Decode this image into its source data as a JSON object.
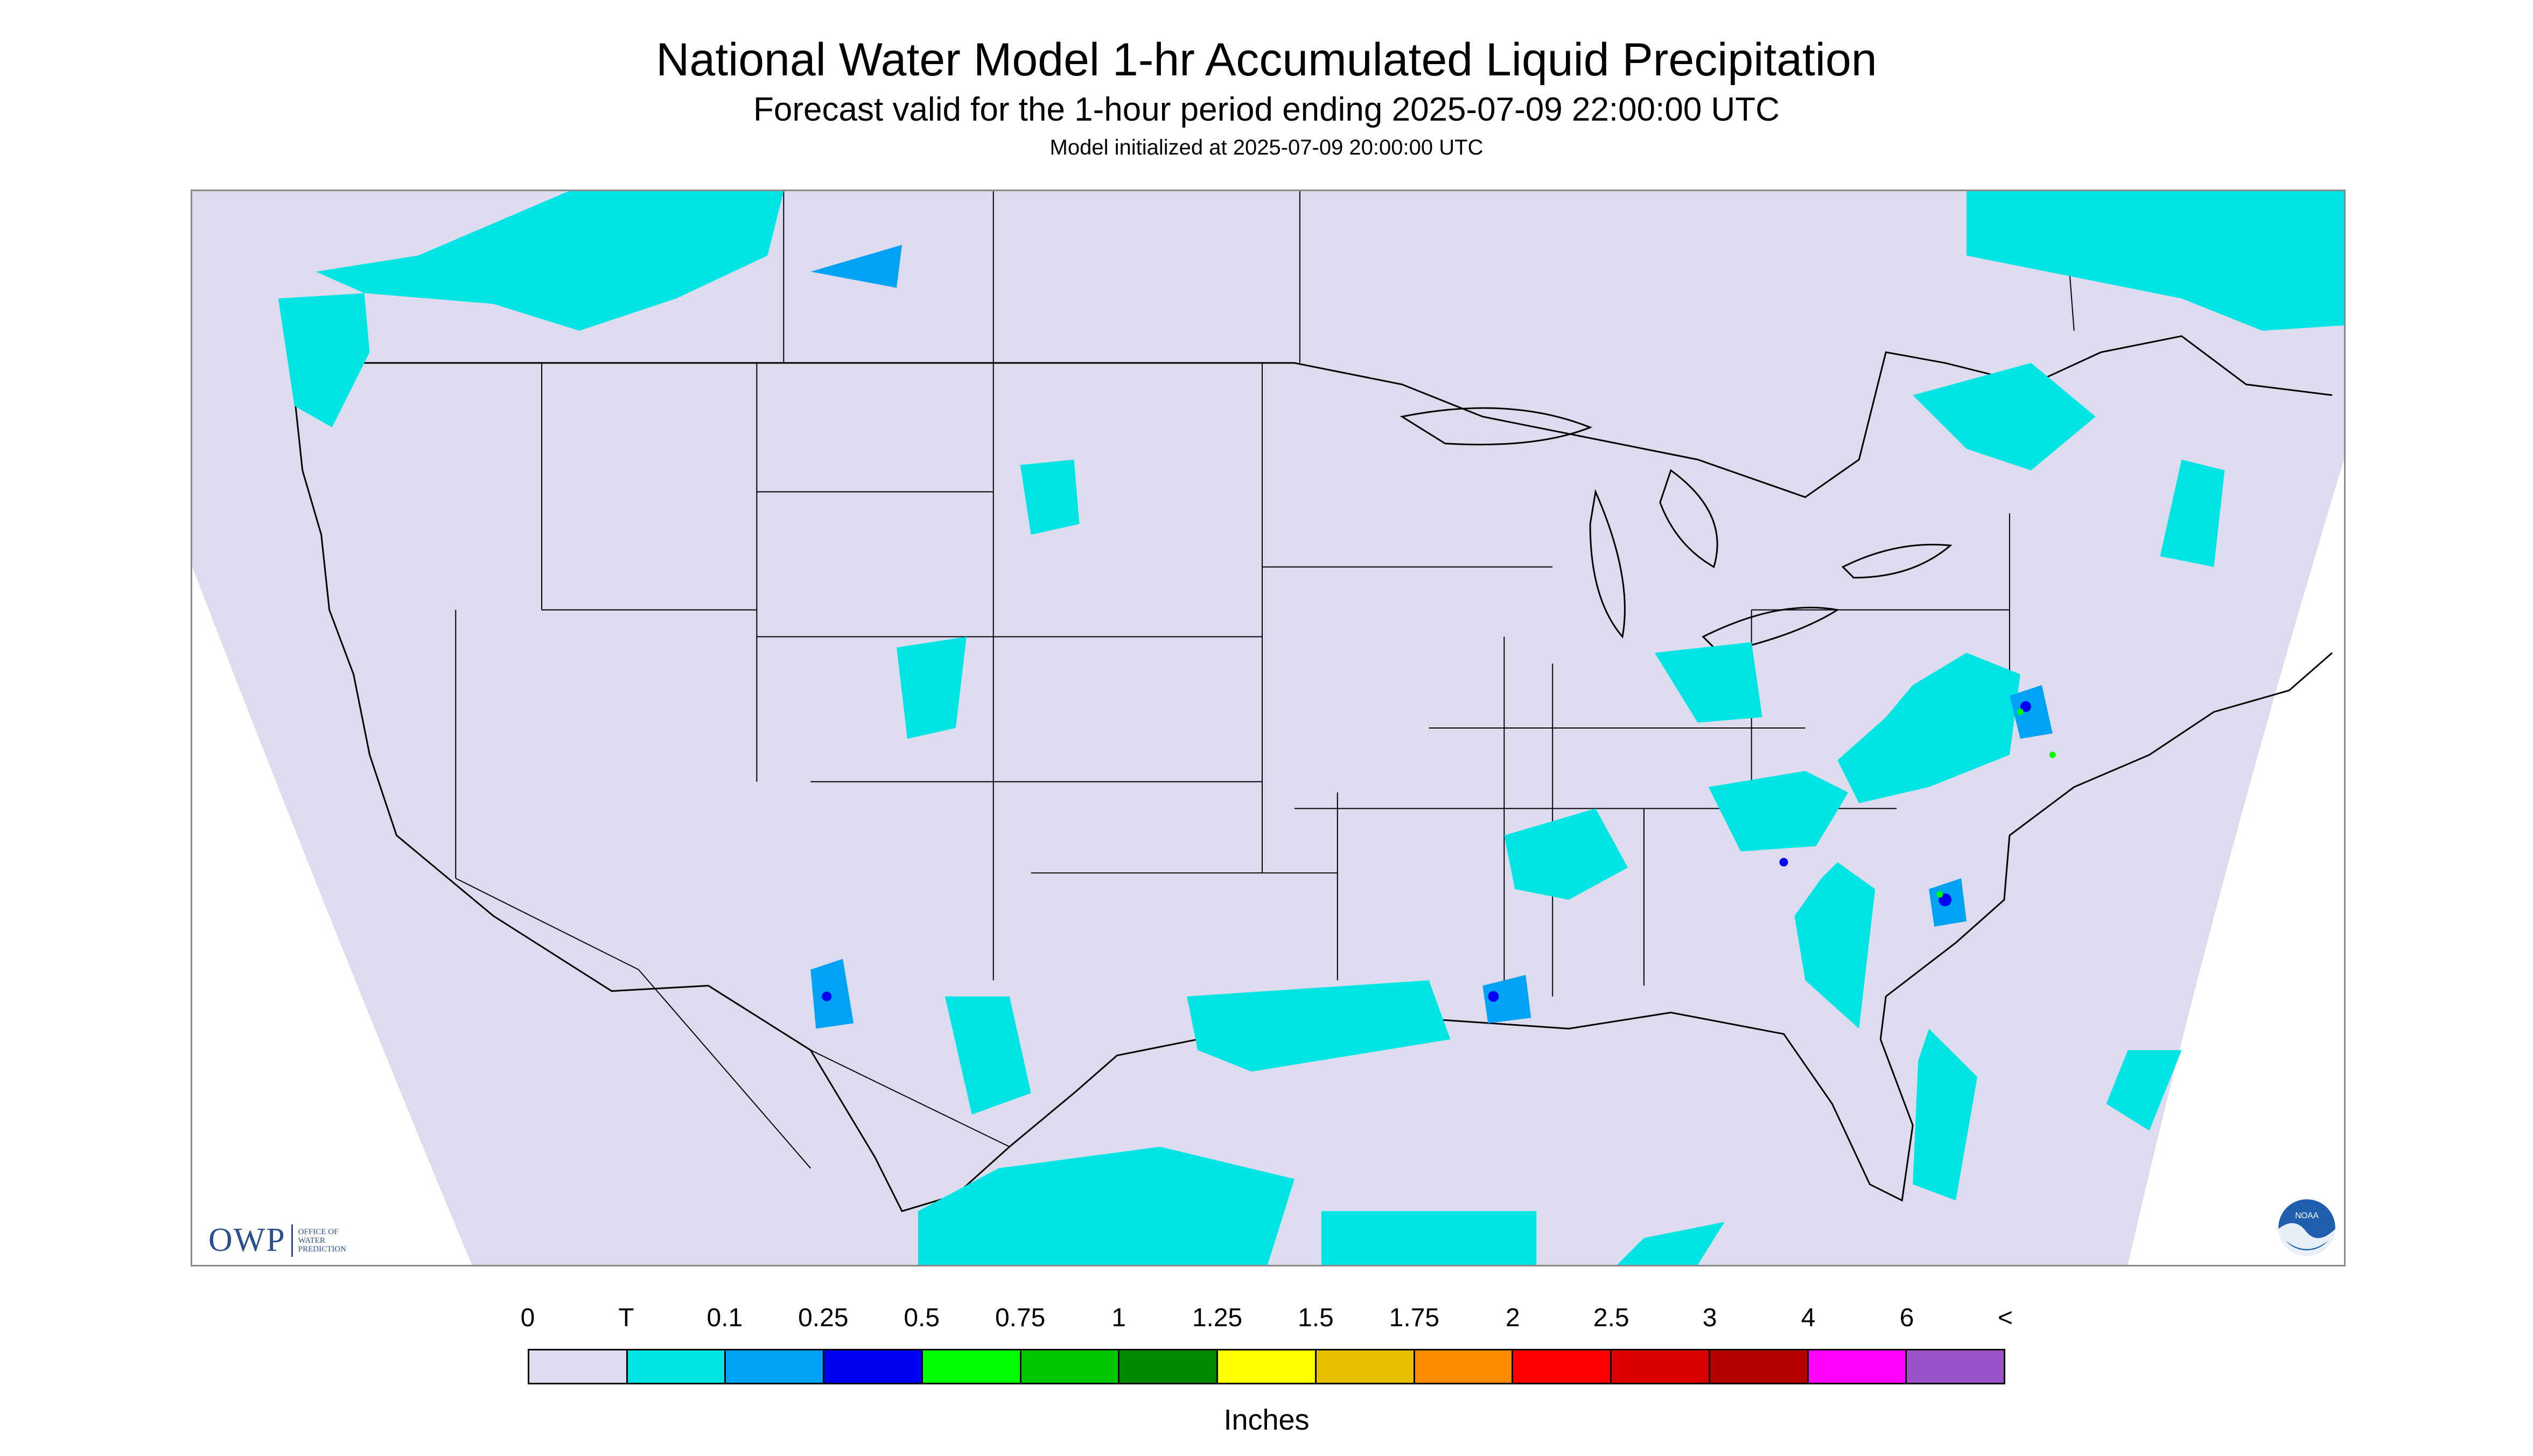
{
  "title": "National Water Model 1-hr Accumulated Liquid Precipitation",
  "subtitle": "Forecast valid for the 1-hour period ending 2025-07-09 22:00:00 UTC",
  "init_line": "Model initialized at 2025-07-09 20:00:00 UTC",
  "logo": {
    "owp_mark": "OWP",
    "owp_text": [
      "OFFICE OF",
      "WATER",
      "PREDICTION"
    ],
    "noaa_text": "NOAA"
  },
  "legend": {
    "ticks": [
      "0",
      "T",
      "0.1",
      "0.25",
      "0.5",
      "0.75",
      "1",
      "1.25",
      "1.5",
      "1.75",
      "2",
      "2.5",
      "3",
      "4",
      "6",
      "<"
    ],
    "colors": [
      "#dcdcee",
      "#00e4e4",
      "#00a2f4",
      "#0000f2",
      "#00ff00",
      "#00c600",
      "#008a00",
      "#ffff00",
      "#e6c000",
      "#ff8c00",
      "#ff0000",
      "#dc0000",
      "#b40000",
      "#ff00ff",
      "#9b52c9"
    ],
    "units": "Inches"
  },
  "colors": {
    "domain_fill": "#dcdcee",
    "outside_fill": "#ffffff",
    "boundaries": "#000000"
  }
}
